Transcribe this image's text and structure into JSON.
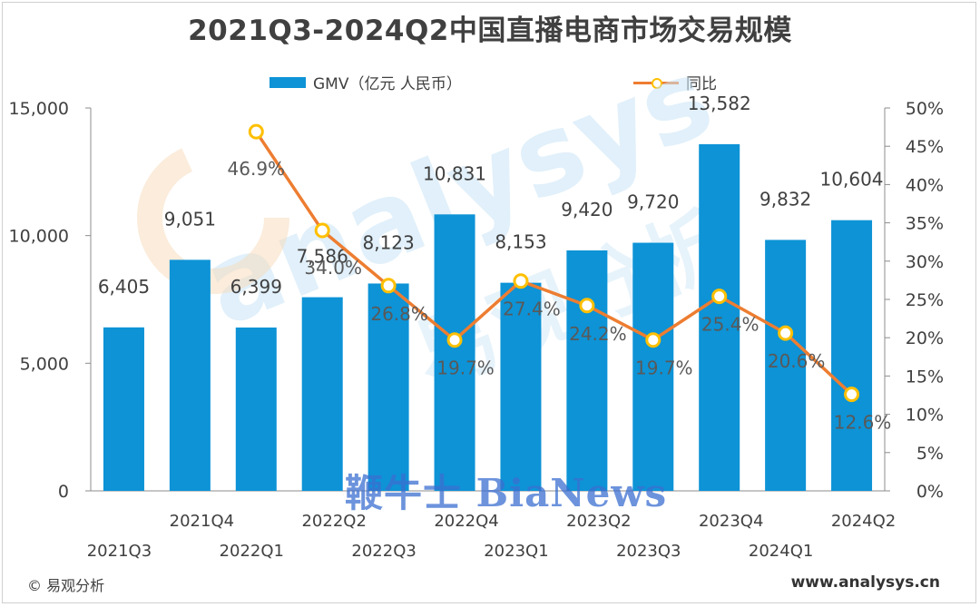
{
  "title": "2021Q3-2024Q2中国直播电商市场交易规模",
  "legend": {
    "bar_label": "GMV（亿元 人民币）",
    "line_label": "同比"
  },
  "footer": {
    "copyright": "© 易观分析",
    "url": "www.analysys.cn"
  },
  "watermark": {
    "text": "鞭牛士 BiaNews",
    "brand": "analysys 易观分析"
  },
  "colors": {
    "bar": "#0d93d6",
    "line": "#ed7d31",
    "marker": "#ffc000",
    "text": "#404040"
  },
  "chart_data": {
    "type": "bar",
    "categories": [
      "2021Q3",
      "2021Q4",
      "2022Q1",
      "2022Q2",
      "2022Q3",
      "2022Q4",
      "2023Q1",
      "2023Q2",
      "2023Q3",
      "2023Q4",
      "2024Q1",
      "2024Q2"
    ],
    "series": [
      {
        "name": "GMV（亿元 人民币）",
        "type": "bar",
        "axis": "left",
        "values": [
          6405,
          9051,
          6399,
          7586,
          8123,
          10831,
          8153,
          9420,
          9720,
          13582,
          9832,
          10604
        ],
        "labels": [
          "6,405",
          "9,051",
          "6,399",
          "7,586",
          "8,123",
          "10,831",
          "8,153",
          "9,420",
          "9,720",
          "13,582",
          "9,832",
          "10,604"
        ]
      },
      {
        "name": "同比",
        "type": "line",
        "axis": "right",
        "values": [
          null,
          null,
          46.9,
          34.0,
          26.8,
          19.7,
          27.4,
          24.2,
          19.7,
          25.4,
          20.6,
          12.6
        ],
        "labels": [
          null,
          null,
          "46.9%",
          "34.0%",
          "26.8%",
          "19.7%",
          "27.4%",
          "24.2%",
          "19.7%",
          "25.4%",
          "20.6%",
          "12.6%"
        ]
      }
    ],
    "ylim_left": [
      0,
      15000
    ],
    "yticks_left": [
      "0",
      "5,000",
      "10,000",
      "15,000"
    ],
    "ylim_right": [
      0,
      50
    ],
    "yticks_right": [
      "0%",
      "5%",
      "10%",
      "15%",
      "20%",
      "25%",
      "30%",
      "35%",
      "40%",
      "45%",
      "50%"
    ],
    "grid": false,
    "legend_position": "top"
  }
}
